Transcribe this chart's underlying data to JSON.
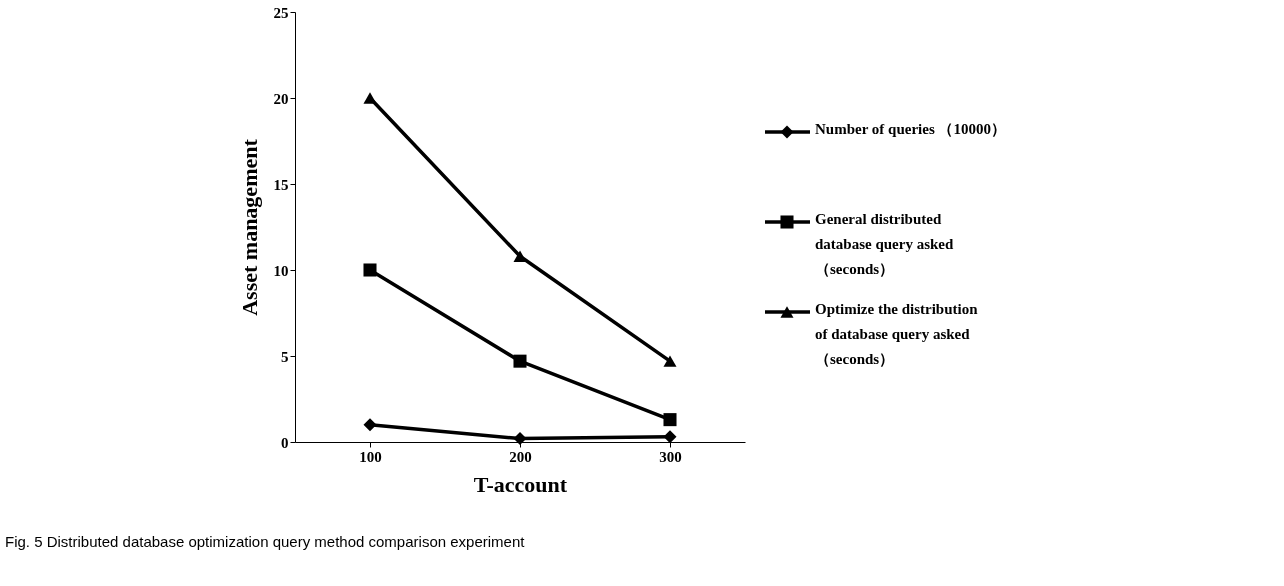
{
  "chart_data": {
    "type": "line",
    "xlabel": "T-account",
    "ylabel": "Asset management",
    "categories": [
      "100",
      "200",
      "300"
    ],
    "series": [
      {
        "name": "Number of queries （10000）",
        "color": "#000000",
        "marker": "diamond",
        "values": [
          1.0,
          0.2,
          0.3
        ]
      },
      {
        "name": "General distributed database query asked （seconds）",
        "color": "#000000",
        "marker": "square",
        "values": [
          10.0,
          4.7,
          1.3
        ]
      },
      {
        "name": "Optimize the distribution of database query asked （seconds）",
        "color": "#000000",
        "marker": "triangle",
        "values": [
          20.0,
          10.8,
          4.7
        ]
      }
    ],
    "ylim": [
      0,
      25
    ],
    "yticks": [
      0,
      5,
      10,
      15,
      20,
      25
    ],
    "grid": false,
    "legend": "right",
    "line_style": "solid",
    "annotations": [
      "Fig. 5 Distributed database optimization query method comparison experiment"
    ]
  }
}
